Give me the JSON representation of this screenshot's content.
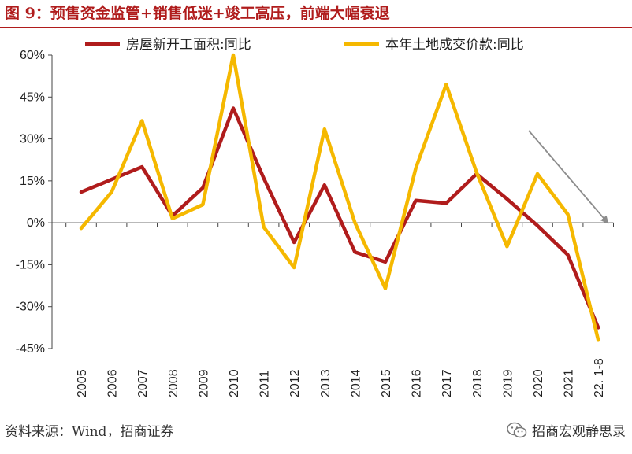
{
  "header": {
    "title": "图 9：预售资金监管+销售低迷+竣工高压，前端大幅衰退"
  },
  "footer": {
    "source": "资料来源：Wind，招商证券",
    "watermark": "招商宏观静思录"
  },
  "colors": {
    "accent": "#b01c1c",
    "series1": "#b01c1c",
    "series2": "#f5b800",
    "arrow": "#8c8c8c"
  },
  "chart_data": {
    "type": "line",
    "title": "",
    "categories": [
      "2005",
      "2006",
      "2007",
      "2008",
      "2009",
      "2010",
      "2011",
      "2012",
      "2013",
      "2014",
      "2015",
      "2016",
      "2017",
      "2018",
      "2019",
      "2020",
      "2021",
      "22. 1-8"
    ],
    "ylim": [
      -45,
      60
    ],
    "yticks": [
      -45,
      -30,
      -15,
      0,
      15,
      30,
      45,
      60
    ],
    "ytick_labels": [
      "-45%",
      "-30%",
      "-15%",
      "0%",
      "15%",
      "30%",
      "45%",
      "60%"
    ],
    "series": [
      {
        "name": "房屋新开工面积:同比",
        "values": [
          11,
          15.5,
          20,
          2.5,
          12.5,
          41,
          16,
          -7,
          13.5,
          -10.5,
          -14,
          8,
          7,
          17.5,
          8.5,
          -1,
          -11.5,
          -37.5
        ]
      },
      {
        "name": "本年土地成交价款:同比",
        "values": [
          -2,
          11,
          36.5,
          1.5,
          6.5,
          60,
          -1.5,
          -16,
          33.5,
          0,
          -23.5,
          19.5,
          49.5,
          18,
          -8.5,
          17.5,
          3,
          -42
        ]
      }
    ],
    "annotation": "downward-trend-arrow"
  }
}
